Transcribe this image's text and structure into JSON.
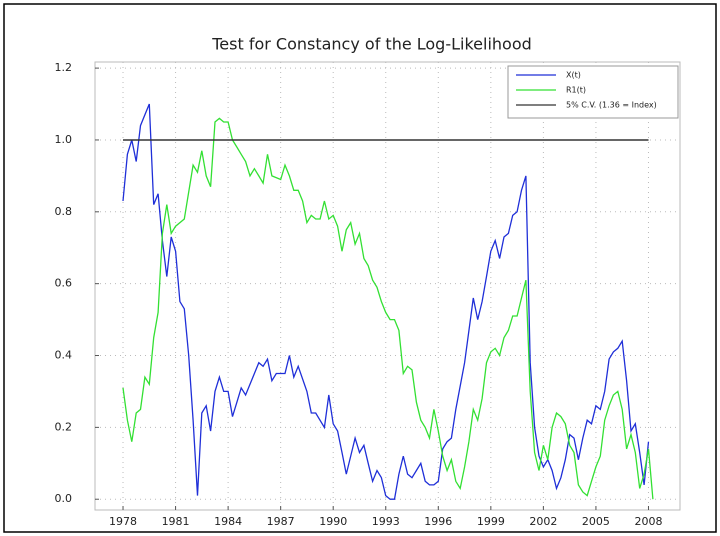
{
  "chart_data": {
    "type": "line",
    "title": "Test for Constancy of the Log-Likelihood",
    "xlim": [
      1976.4,
      2009.8
    ],
    "ylim": [
      -0.03,
      1.217
    ],
    "xticks": [
      1978,
      1981,
      1984,
      1987,
      1990,
      1993,
      1996,
      1999,
      2002,
      2005,
      2008
    ],
    "yticks": [
      {
        "value": 0,
        "label": "0.0"
      },
      0.2,
      0.4,
      0.6,
      0.8,
      {
        "value": 1,
        "label": "1.0"
      },
      1.2
    ],
    "grid": true,
    "legend": "upper right",
    "series": [
      {
        "name": "X(t)",
        "color": "#1f2fd8",
        "x": [
          1978.0,
          1978.25,
          1978.5,
          1978.75,
          1979.0,
          1979.25,
          1979.5,
          1979.75,
          1980.0,
          1980.25,
          1980.5,
          1980.75,
          1981.0,
          1981.25,
          1981.5,
          1981.75,
          1982.0,
          1982.25,
          1982.5,
          1982.75,
          1983.0,
          1983.25,
          1983.5,
          1983.75,
          1984.0,
          1984.25,
          1984.5,
          1984.75,
          1985.0,
          1985.5,
          1985.75,
          1986.0,
          1986.25,
          1986.5,
          1986.75,
          1987.25,
          1987.5,
          1987.75,
          1988.0,
          1988.5,
          1988.75,
          1989.0,
          1989.5,
          1989.75,
          1990.0,
          1990.25,
          1990.5,
          1990.75,
          1991.0,
          1991.25,
          1991.5,
          1991.75,
          1992.0,
          1992.25,
          1992.5,
          1992.75,
          1993.0,
          1993.25,
          1993.5,
          1993.75,
          1994.0,
          1994.25,
          1994.5,
          1994.75,
          1995.0,
          1995.25,
          1995.5,
          1995.75,
          1996.0,
          1996.25,
          1996.5,
          1996.75,
          1997.0,
          1997.5,
          1998.0,
          1998.25,
          1998.5,
          1998.75,
          1999.0,
          1999.25,
          1999.5,
          1999.75,
          2000.0,
          2000.25,
          2000.5,
          2000.75,
          2001.0,
          2001.25,
          2001.5,
          2001.75,
          2002.0,
          2002.25,
          2002.5,
          2002.75,
          2003.0,
          2003.25,
          2003.5,
          2003.75,
          2004.0,
          2004.25,
          2004.5,
          2004.75,
          2005.0,
          2005.25,
          2005.5,
          2005.75,
          2006.0,
          2006.25,
          2006.5,
          2006.75,
          2007.0,
          2007.25,
          2007.5,
          2007.75,
          2008.0
        ],
        "values": [
          0.83,
          0.96,
          1.0,
          0.94,
          1.04,
          1.07,
          1.1,
          0.82,
          0.85,
          0.72,
          0.62,
          0.73,
          0.69,
          0.55,
          0.53,
          0.4,
          0.22,
          0.01,
          0.24,
          0.26,
          0.19,
          0.3,
          0.34,
          0.3,
          0.3,
          0.23,
          0.27,
          0.31,
          0.29,
          0.35,
          0.38,
          0.37,
          0.39,
          0.33,
          0.35,
          0.35,
          0.4,
          0.34,
          0.37,
          0.3,
          0.24,
          0.24,
          0.2,
          0.29,
          0.21,
          0.19,
          0.13,
          0.07,
          0.12,
          0.17,
          0.13,
          0.15,
          0.1,
          0.05,
          0.08,
          0.06,
          0.01,
          0.0,
          0.0,
          0.07,
          0.12,
          0.07,
          0.06,
          0.08,
          0.1,
          0.05,
          0.04,
          0.04,
          0.05,
          0.14,
          0.16,
          0.17,
          0.25,
          0.38,
          0.56,
          0.5,
          0.55,
          0.62,
          0.69,
          0.72,
          0.67,
          0.73,
          0.74,
          0.79,
          0.8,
          0.86,
          0.9,
          0.38,
          0.2,
          0.12,
          0.09,
          0.11,
          0.08,
          0.03,
          0.06,
          0.11,
          0.18,
          0.17,
          0.11,
          0.17,
          0.22,
          0.21,
          0.26,
          0.25,
          0.3,
          0.39,
          0.41,
          0.42,
          0.44,
          0.33,
          0.19,
          0.21,
          0.13,
          0.04,
          0.16
        ]
      },
      {
        "name": "R1(t)",
        "color": "#33e033",
        "x": [
          1978.0,
          1978.25,
          1978.5,
          1978.75,
          1979.0,
          1979.25,
          1979.5,
          1979.75,
          1980.0,
          1980.25,
          1980.5,
          1980.75,
          1981.0,
          1981.5,
          1982.0,
          1982.25,
          1982.5,
          1982.75,
          1983.0,
          1983.25,
          1983.5,
          1983.75,
          1984.0,
          1984.25,
          1984.5,
          1984.75,
          1985.0,
          1985.25,
          1985.5,
          1985.75,
          1986.0,
          1986.25,
          1986.5,
          1987.0,
          1987.25,
          1987.5,
          1987.75,
          1988.0,
          1988.25,
          1988.5,
          1988.75,
          1989.0,
          1989.25,
          1989.5,
          1989.75,
          1990.0,
          1990.25,
          1990.5,
          1990.75,
          1991.0,
          1991.25,
          1991.5,
          1991.75,
          1992.0,
          1992.25,
          1992.5,
          1992.75,
          1993.0,
          1993.25,
          1993.5,
          1993.75,
          1994.0,
          1994.25,
          1994.5,
          1994.75,
          1995.0,
          1995.25,
          1995.5,
          1995.75,
          1996.0,
          1996.25,
          1996.5,
          1996.75,
          1997.0,
          1997.25,
          1997.5,
          1997.75,
          1998.0,
          1998.25,
          1998.5,
          1998.75,
          1999.0,
          1999.25,
          1999.5,
          1999.75,
          2000.0,
          2000.25,
          2000.5,
          2000.75,
          2001.0,
          2001.25,
          2001.5,
          2001.75,
          2002.0,
          2002.25,
          2002.5,
          2002.75,
          2003.0,
          2003.25,
          2003.5,
          2003.75,
          2004.0,
          2004.25,
          2004.5,
          2004.75,
          2005.0,
          2005.25,
          2005.5,
          2005.75,
          2006.0,
          2006.25,
          2006.5,
          2006.75,
          2007.0,
          2007.25,
          2007.5,
          2007.75,
          2008.0,
          2008.25
        ],
        "values": [
          0.31,
          0.22,
          0.16,
          0.24,
          0.25,
          0.34,
          0.32,
          0.45,
          0.52,
          0.74,
          0.82,
          0.74,
          0.76,
          0.78,
          0.93,
          0.91,
          0.97,
          0.9,
          0.87,
          1.05,
          1.06,
          1.05,
          1.05,
          1.0,
          0.98,
          0.96,
          0.94,
          0.9,
          0.92,
          0.9,
          0.88,
          0.96,
          0.9,
          0.89,
          0.93,
          0.9,
          0.86,
          0.86,
          0.83,
          0.77,
          0.79,
          0.78,
          0.78,
          0.83,
          0.78,
          0.79,
          0.76,
          0.69,
          0.75,
          0.77,
          0.71,
          0.74,
          0.67,
          0.65,
          0.61,
          0.59,
          0.55,
          0.52,
          0.5,
          0.5,
          0.47,
          0.35,
          0.37,
          0.36,
          0.27,
          0.22,
          0.2,
          0.17,
          0.25,
          0.19,
          0.12,
          0.08,
          0.11,
          0.05,
          0.03,
          0.09,
          0.16,
          0.25,
          0.22,
          0.28,
          0.38,
          0.41,
          0.42,
          0.4,
          0.45,
          0.47,
          0.51,
          0.51,
          0.56,
          0.61,
          0.3,
          0.13,
          0.08,
          0.15,
          0.11,
          0.2,
          0.24,
          0.23,
          0.21,
          0.15,
          0.13,
          0.04,
          0.02,
          0.01,
          0.05,
          0.09,
          0.12,
          0.22,
          0.26,
          0.29,
          0.3,
          0.25,
          0.14,
          0.18,
          0.13,
          0.03,
          0.07,
          0.14,
          0.0
        ]
      },
      {
        "name": "5% C.V. (1.36 = Index)",
        "color": "#333333",
        "x": [
          1978,
          2008
        ],
        "values": [
          1,
          1
        ]
      }
    ]
  }
}
